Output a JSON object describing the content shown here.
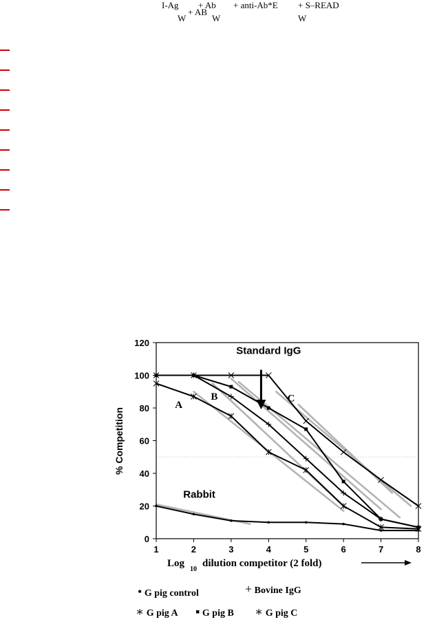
{
  "equation": {
    "line1": [
      {
        "text": "I-Ag"
      },
      {
        "text": "+ Ab"
      },
      {
        "text": "+ anti-Ab*E"
      },
      {
        "text": "+ S–READ"
      }
    ],
    "line2": [
      {
        "text": "W"
      },
      {
        "text": "+ AB"
      },
      {
        "text": "W"
      },
      {
        "text": "W"
      }
    ]
  },
  "colors": {
    "margin_marks": "#cc0000",
    "data_line": "#000000",
    "fit_line": "#b3b3b3",
    "ref_line": "#d9d9d9"
  },
  "chart_data": {
    "type": "line",
    "xlabel": "Log",
    "xlabel_sub": "10",
    "xlabel_rest": "dilution competitor (2 fold)",
    "ylabel": "% Competition",
    "xlim": [
      1,
      8
    ],
    "ylim": [
      0,
      120
    ],
    "xticks": [
      "1",
      "2",
      "3",
      "4",
      "5",
      "6",
      "7",
      "8"
    ],
    "yticks": [
      "0",
      "20",
      "40",
      "60",
      "80",
      "100",
      "120"
    ],
    "reference_y": 50,
    "series": [
      {
        "name": "G pig control",
        "marker": "dot",
        "x": [
          1,
          2,
          3,
          4,
          5,
          6,
          7,
          8
        ],
        "y": [
          20,
          15,
          11,
          10,
          10,
          9,
          5,
          5
        ]
      },
      {
        "name": "Bovine IgG",
        "marker": "plus",
        "x": [
          1,
          2,
          3,
          4,
          5,
          6,
          7,
          8
        ],
        "y": [
          100,
          100,
          87,
          70,
          49,
          28,
          12,
          7
        ]
      },
      {
        "name": "G pig A",
        "marker": "star",
        "x": [
          1,
          2,
          3,
          4,
          5,
          6,
          7,
          8
        ],
        "y": [
          95,
          87,
          75,
          53,
          42,
          20,
          7,
          6
        ]
      },
      {
        "name": "G pig B",
        "marker": "square",
        "x": [
          1,
          2,
          3,
          4,
          5,
          6,
          7,
          8
        ],
        "y": [
          100,
          100,
          93,
          80,
          67,
          35,
          12,
          7
        ]
      },
      {
        "name": "G pig C",
        "marker": "x",
        "x": [
          1,
          2,
          3,
          4,
          5,
          6,
          7,
          8
        ],
        "y": [
          100,
          100,
          100,
          100,
          72,
          53,
          36,
          20
        ]
      }
    ],
    "fit_lines": [
      {
        "x": [
          1,
          3.5
        ],
        "y": [
          21,
          9
        ]
      },
      {
        "x": [
          2,
          6
        ],
        "y": [
          90,
          17
        ]
      },
      {
        "x": [
          2.5,
          6
        ],
        "y": [
          95,
          20
        ]
      },
      {
        "x": [
          3,
          7
        ],
        "y": [
          98,
          18
        ]
      },
      {
        "x": [
          3.2,
          7.5
        ],
        "y": [
          96,
          13
        ]
      },
      {
        "x": [
          4.2,
          7.8
        ],
        "y": [
          90,
          20
        ]
      },
      {
        "x": [
          4.8,
          7.3
        ],
        "y": [
          82,
          28
        ]
      }
    ],
    "annotations": [
      {
        "text": "Standard IgG",
        "x": 4.0,
        "y": 113
      },
      {
        "text": "A",
        "x": 1.6,
        "y": 80
      },
      {
        "text": "B",
        "x": 2.55,
        "y": 85
      },
      {
        "text": "C",
        "x": 4.6,
        "y": 84
      },
      {
        "text": "Rabbit",
        "x": 2.15,
        "y": 25
      }
    ],
    "arrow": {
      "x": 3.8,
      "y_from": 100,
      "y_to": 80
    }
  },
  "legend": [
    {
      "symbol": "•",
      "name": "G pig control"
    },
    {
      "symbol": "+",
      "name": "Bovine IgG"
    },
    {
      "symbol": "∗",
      "name": "G pig A"
    },
    {
      "symbol": "▪",
      "name": "G pig B"
    },
    {
      "symbol": "∗",
      "name": "G pig C"
    }
  ]
}
